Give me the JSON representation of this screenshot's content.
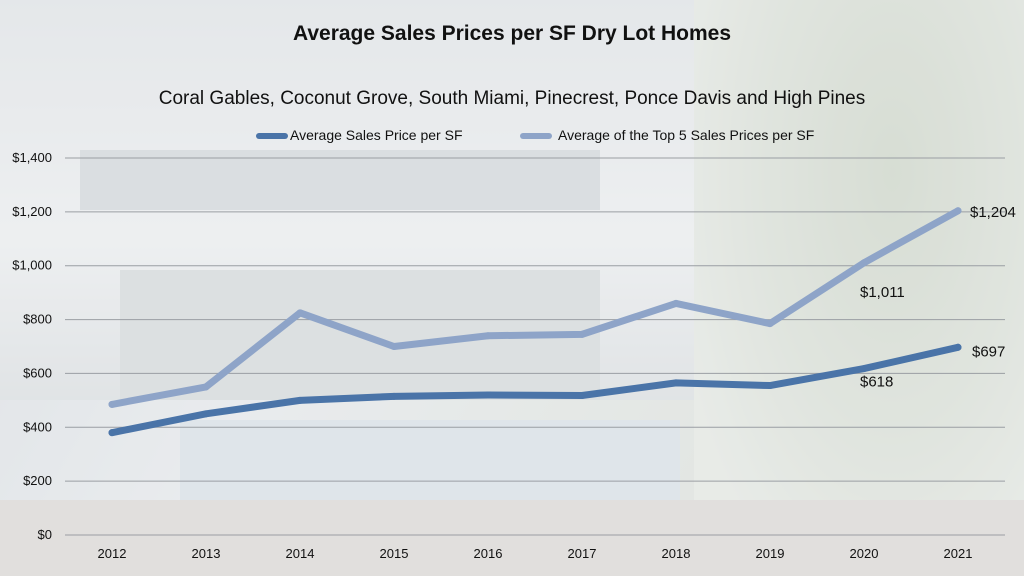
{
  "chart_data": {
    "type": "line",
    "title": "Average Sales Prices per SF  Dry Lot Homes",
    "subtitle": "Coral Gables, Coconut Grove, South Miami, Pinecrest, Ponce Davis and High Pines",
    "x": [
      "2012",
      "2013",
      "2014",
      "2015",
      "2016",
      "2017",
      "2018",
      "2019",
      "2020",
      "2021"
    ],
    "ylim": [
      0,
      1400
    ],
    "yticks": [
      "$0",
      "$200",
      "$400",
      "$600",
      "$800",
      "$1,000",
      "$1,200",
      "$1,400"
    ],
    "grid": true,
    "legend": "top",
    "series": [
      {
        "name": "Average Sales Price per SF",
        "color": "#4a74a8",
        "values": [
          380,
          450,
          500,
          515,
          520,
          518,
          565,
          555,
          618,
          697
        ],
        "labels": {
          "8": "$618",
          "9": "$697"
        }
      },
      {
        "name": "Average of the Top 5 Sales Prices per SF",
        "color": "#8ea4c8",
        "values": [
          485,
          550,
          825,
          700,
          740,
          745,
          860,
          785,
          1011,
          1204
        ],
        "labels": {
          "8": "$1,011",
          "9": "$1,204"
        }
      }
    ]
  }
}
